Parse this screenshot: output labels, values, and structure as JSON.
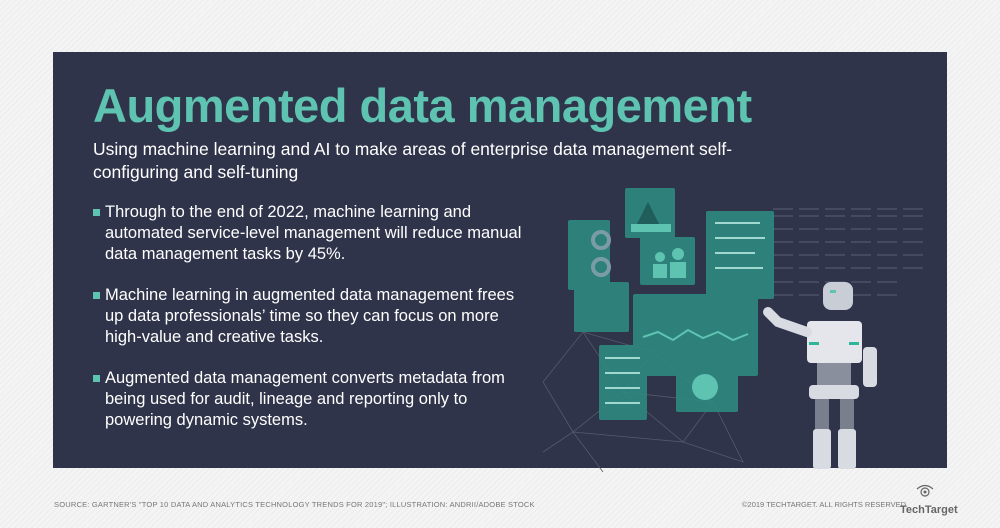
{
  "title": "Augmented data management",
  "subtitle": "Using machine learning and AI to make areas of enterprise data management self-configuring and self-tuning",
  "bullets": [
    "Through to the end of 2022, machine learning and automated service-level management will reduce manual data management tasks by 45%.",
    "Machine learning in augmented data management frees up data professionals’ time so they can focus on more high-value and creative tasks.",
    "Augmented data management converts metadata from being used for audit, lineage and reporting only to powering dynamic systems."
  ],
  "footer": {
    "source": "SOURCE: GARTNER'S \"TOP 10 DATA AND ANALYTICS TECHNOLOGY TRENDS FOR 2019\"; ILLUSTRATION: ANDRII/ADOBE STOCK",
    "copyright": "©2019 TECHTARGET. ALL RIGHTS RESERVED",
    "logo": "TechTarget"
  },
  "colors": {
    "panel": "#30344a",
    "accent": "#5ec4b1",
    "screen": "#2e8a80"
  },
  "icons": [
    "bullet-square-icon",
    "robot-illustration",
    "eye-logo-icon"
  ]
}
